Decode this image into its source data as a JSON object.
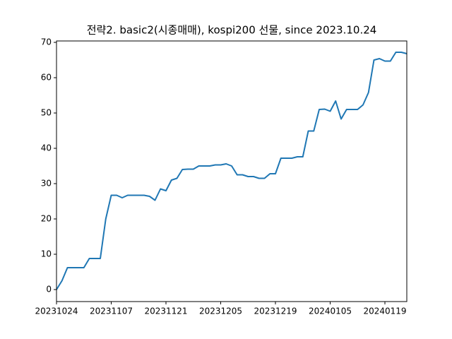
{
  "chart_data": {
    "type": "line",
    "title": "전략2. basic2(시종매매), kospi200 선물, since 2023.10.24",
    "categories": [
      "20231024",
      null,
      null,
      null,
      null,
      null,
      null,
      null,
      null,
      null,
      "20231107",
      null,
      null,
      null,
      null,
      null,
      null,
      null,
      null,
      null,
      "20231121",
      null,
      null,
      null,
      null,
      null,
      null,
      null,
      null,
      null,
      "20231205",
      null,
      null,
      null,
      null,
      null,
      null,
      null,
      null,
      null,
      "20231219",
      null,
      null,
      null,
      null,
      null,
      null,
      null,
      null,
      null,
      "20240105",
      null,
      null,
      null,
      null,
      null,
      null,
      null,
      null,
      null,
      "20240119",
      null,
      null,
      null,
      null
    ],
    "series": [
      {
        "color": "#1f77b4",
        "values": [
          0,
          2.5,
          6.2,
          6.2,
          6.2,
          6.2,
          8.8,
          8.8,
          8.8,
          20,
          26.7,
          26.7,
          26,
          26.7,
          26.7,
          26.7,
          26.7,
          26.4,
          25.3,
          28.5,
          28,
          31,
          31.5,
          34,
          34.1,
          34.1,
          35,
          35,
          35,
          35.3,
          35.3,
          35.6,
          35,
          32.5,
          32.5,
          32,
          32,
          31.5,
          31.5,
          32.8,
          32.8,
          37.2,
          37.2,
          37.2,
          37.6,
          37.6,
          44.9,
          44.9,
          51,
          51.1,
          50.5,
          53.4,
          48.3,
          51,
          51,
          51,
          52.3,
          55.8,
          65,
          65.4,
          64.7,
          64.7,
          67.2,
          67.2,
          66.8
        ]
      }
    ],
    "ylim": [
      -3.4,
      70.4
    ],
    "yticks": [
      0,
      10,
      20,
      30,
      40,
      50,
      60,
      70
    ]
  }
}
